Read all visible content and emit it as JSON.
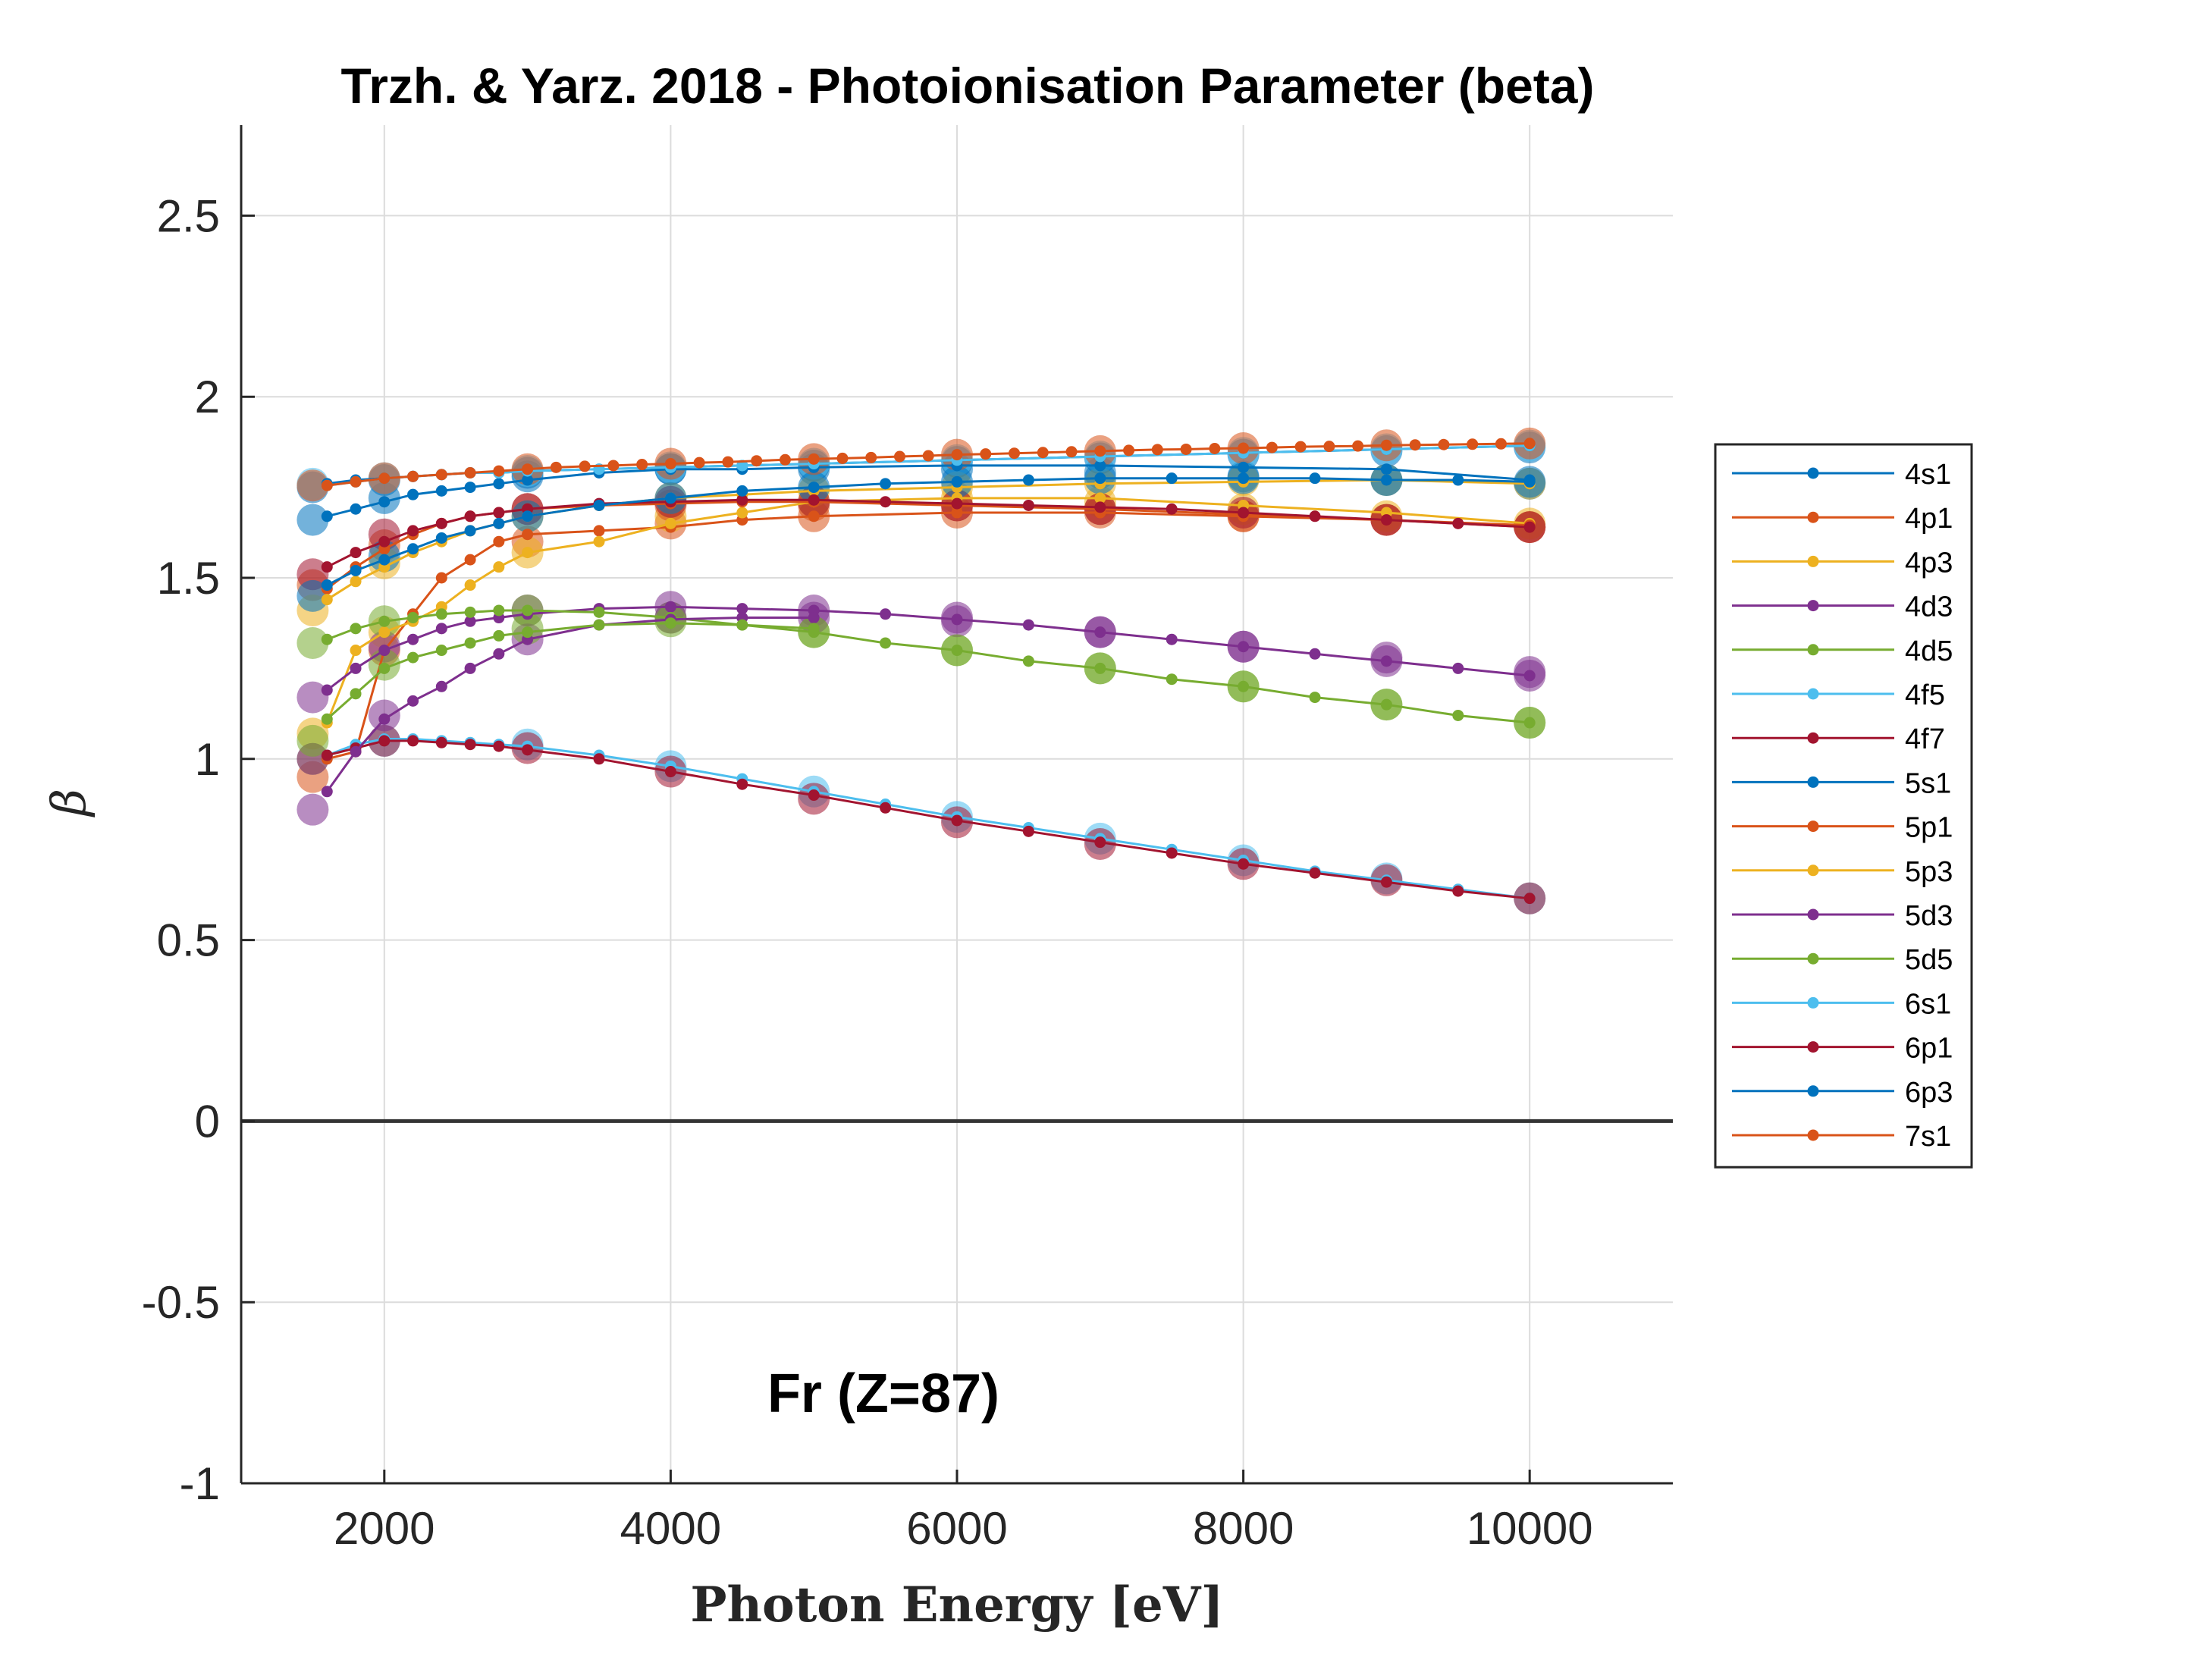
{
  "chart_data": {
    "type": "line",
    "title": "Trzh. & Yarz. 2018 - Photoionisation Parameter (beta)",
    "xlabel": "Photon Energy [eV]",
    "ylabel": "β",
    "annotation": "Fr (Z=87)",
    "xlim": [
      1000,
      11000
    ],
    "ylim": [
      -1,
      2.75
    ],
    "xticks": [
      2000,
      4000,
      6000,
      8000,
      10000
    ],
    "xtick_labels": [
      "2000",
      "4000",
      "6000",
      "8000",
      "10000"
    ],
    "yticks": [
      -1,
      -0.5,
      0,
      0.5,
      1,
      1.5,
      2,
      2.5
    ],
    "ytick_labels": [
      "-1",
      "-0.5",
      "0",
      "0.5",
      "1",
      "1.5",
      "2",
      "2.5"
    ],
    "grid": true,
    "zero_line": true,
    "legend_position": "right",
    "marker_x": [
      1500,
      2000,
      3000,
      4000,
      5000,
      6000,
      7000,
      8000,
      9000,
      10000
    ],
    "series": [
      {
        "name": "4s1",
        "color": "#0072BD",
        "x": [
          1600,
          1800,
          2000,
          2200,
          2400,
          2600,
          2800,
          3000,
          3500,
          4000,
          4500,
          5000,
          6000,
          7000,
          8000,
          9000,
          10000
        ],
        "y": [
          1.76,
          1.77,
          1.775,
          1.78,
          1.785,
          1.79,
          1.79,
          1.795,
          1.8,
          1.805,
          1.81,
          1.815,
          1.825,
          1.835,
          1.845,
          1.855,
          1.865
        ],
        "marker_y": [
          1.75,
          1.77,
          1.79,
          1.8,
          1.81,
          1.82,
          1.83,
          1.84,
          1.85,
          1.86
        ]
      },
      {
        "name": "4p1",
        "color": "#D95319",
        "x": [
          1600,
          1800,
          2000,
          2200,
          2400,
          2600,
          2800,
          3000,
          3500,
          4000,
          4500,
          5000,
          6000,
          7000,
          8000,
          9000,
          10000
        ],
        "y": [
          1.0,
          1.02,
          1.3,
          1.4,
          1.5,
          1.55,
          1.6,
          1.62,
          1.63,
          1.64,
          1.66,
          1.67,
          1.68,
          1.68,
          1.67,
          1.66,
          1.64
        ],
        "marker_y": [
          0.95,
          1.3,
          1.6,
          1.65,
          1.67,
          1.68,
          1.68,
          1.67,
          1.66,
          1.64
        ]
      },
      {
        "name": "4p3",
        "color": "#EDB120",
        "x": [
          1600,
          1800,
          2000,
          2200,
          2400,
          2600,
          2800,
          3000,
          3500,
          4000,
          4500,
          5000,
          6000,
          7000,
          8000,
          9000,
          10000
        ],
        "y": [
          1.1,
          1.3,
          1.35,
          1.38,
          1.42,
          1.48,
          1.53,
          1.57,
          1.6,
          1.65,
          1.68,
          1.71,
          1.72,
          1.72,
          1.7,
          1.68,
          1.65
        ],
        "marker_y": [
          1.07,
          1.35,
          1.57,
          1.67,
          1.71,
          1.72,
          1.71,
          1.69,
          1.67,
          1.65
        ]
      },
      {
        "name": "4d3",
        "color": "#7E2F8E",
        "x": [
          1600,
          1800,
          2000,
          2200,
          2400,
          2600,
          2800,
          3000,
          3500,
          4000,
          4500,
          5000,
          5500,
          6000,
          6500,
          7000,
          7500,
          8000,
          8500,
          9000,
          9500,
          10000
        ],
        "y": [
          1.19,
          1.25,
          1.3,
          1.33,
          1.36,
          1.38,
          1.39,
          1.4,
          1.415,
          1.42,
          1.415,
          1.41,
          1.4,
          1.385,
          1.37,
          1.35,
          1.33,
          1.31,
          1.29,
          1.27,
          1.25,
          1.23
        ],
        "marker_y": [
          1.17,
          1.31,
          1.41,
          1.42,
          1.41,
          1.39,
          1.35,
          1.31,
          1.27,
          1.23
        ]
      },
      {
        "name": "4d5",
        "color": "#77AC30",
        "x": [
          1600,
          1800,
          2000,
          2200,
          2400,
          2600,
          2800,
          3000,
          3500,
          4000,
          4500,
          5000,
          5500,
          6000,
          6500,
          7000,
          7500,
          8000,
          8500,
          9000,
          9500,
          10000
        ],
        "y": [
          1.33,
          1.36,
          1.38,
          1.39,
          1.4,
          1.405,
          1.41,
          1.41,
          1.405,
          1.39,
          1.37,
          1.35,
          1.32,
          1.3,
          1.27,
          1.25,
          1.22,
          1.2,
          1.17,
          1.15,
          1.12,
          1.1
        ],
        "marker_y": [
          1.32,
          1.38,
          1.41,
          1.39,
          1.35,
          1.3,
          1.25,
          1.2,
          1.15,
          1.1
        ]
      },
      {
        "name": "4f5",
        "color": "#4DBEEE",
        "x": [
          1600,
          1800,
          2000,
          2200,
          2400,
          2600,
          2800,
          3000,
          3500,
          4000,
          4500,
          5000,
          5500,
          6000,
          6500,
          7000,
          7500,
          8000,
          8500,
          9000,
          9500,
          10000
        ],
        "y": [
          1.01,
          1.04,
          1.055,
          1.055,
          1.05,
          1.045,
          1.04,
          1.035,
          1.01,
          0.98,
          0.945,
          0.91,
          0.875,
          0.84,
          0.81,
          0.78,
          0.75,
          0.72,
          0.69,
          0.665,
          0.64,
          0.615
        ],
        "marker_y": [
          1.0,
          1.05,
          1.04,
          0.98,
          0.91,
          0.84,
          0.78,
          0.72,
          0.67,
          0.615
        ]
      },
      {
        "name": "4f7",
        "color": "#A2142F",
        "x": [
          1600,
          1800,
          2000,
          2200,
          2400,
          2600,
          2800,
          3000,
          3500,
          4000,
          4500,
          5000,
          5500,
          6000,
          6500,
          7000,
          7500,
          8000,
          8500,
          9000,
          9500,
          10000
        ],
        "y": [
          1.01,
          1.03,
          1.05,
          1.05,
          1.045,
          1.04,
          1.035,
          1.025,
          1.0,
          0.965,
          0.93,
          0.9,
          0.865,
          0.83,
          0.8,
          0.77,
          0.74,
          0.71,
          0.685,
          0.66,
          0.635,
          0.615
        ],
        "marker_y": [
          1.0,
          1.05,
          1.03,
          0.965,
          0.89,
          0.825,
          0.765,
          0.71,
          0.665,
          0.615
        ]
      },
      {
        "name": "5s1",
        "color": "#0072BD",
        "x": [
          1600,
          1800,
          2000,
          2200,
          2400,
          2600,
          2800,
          3000,
          3500,
          4000,
          4500,
          5000,
          6000,
          7000,
          8000,
          9000,
          10000
        ],
        "y": [
          1.67,
          1.69,
          1.71,
          1.73,
          1.74,
          1.75,
          1.76,
          1.77,
          1.79,
          1.8,
          1.8,
          1.805,
          1.81,
          1.81,
          1.805,
          1.8,
          1.77
        ],
        "marker_y": [
          1.66,
          1.72,
          1.78,
          1.8,
          1.8,
          1.8,
          1.79,
          1.78,
          1.77,
          1.76
        ]
      },
      {
        "name": "5p1",
        "color": "#D95319",
        "x": [
          1600,
          1800,
          2000,
          2200,
          2400,
          2600,
          2800,
          3000,
          3500,
          4000,
          4500,
          5000,
          6000,
          7000,
          8000,
          9000,
          10000
        ],
        "y": [
          1.47,
          1.53,
          1.58,
          1.62,
          1.65,
          1.67,
          1.68,
          1.69,
          1.7,
          1.705,
          1.71,
          1.71,
          1.7,
          1.69,
          1.675,
          1.66,
          1.645
        ],
        "marker_y": [
          1.48,
          1.59,
          1.69,
          1.7,
          1.7,
          1.7,
          1.69,
          1.67,
          1.66,
          1.64
        ]
      },
      {
        "name": "5p3",
        "color": "#EDB120",
        "x": [
          1600,
          1800,
          2000,
          2200,
          2400,
          2600,
          2800,
          3000,
          3500,
          4000,
          4500,
          5000,
          6000,
          7000,
          8000,
          9000,
          10000
        ],
        "y": [
          1.44,
          1.49,
          1.53,
          1.57,
          1.6,
          1.63,
          1.65,
          1.67,
          1.7,
          1.72,
          1.73,
          1.74,
          1.75,
          1.76,
          1.765,
          1.77,
          1.76
        ],
        "marker_y": [
          1.41,
          1.54,
          1.67,
          1.72,
          1.74,
          1.75,
          1.76,
          1.77,
          1.77,
          1.76
        ]
      },
      {
        "name": "5d3",
        "color": "#7E2F8E",
        "x": [
          1600,
          1800,
          2000,
          2200,
          2400,
          2600,
          2800,
          3000,
          3500,
          4000,
          4500,
          5000
        ],
        "y": [
          0.91,
          1.02,
          1.11,
          1.16,
          1.2,
          1.25,
          1.29,
          1.33,
          1.37,
          1.385,
          1.39,
          1.39
        ],
        "marker_y": [
          0.86,
          1.12,
          1.33,
          1.39,
          1.39,
          1.38,
          1.35,
          1.31,
          1.28,
          1.24
        ]
      },
      {
        "name": "5d5",
        "color": "#77AC30",
        "x": [
          1600,
          1800,
          2000,
          2200,
          2400,
          2600,
          2800,
          3000,
          3500,
          4000,
          4500,
          5000
        ],
        "y": [
          1.11,
          1.18,
          1.25,
          1.28,
          1.3,
          1.32,
          1.34,
          1.35,
          1.37,
          1.375,
          1.37,
          1.36
        ],
        "marker_y": [
          1.05,
          1.26,
          1.36,
          1.38,
          1.35,
          1.3,
          1.25,
          1.2,
          1.15,
          1.1
        ]
      },
      {
        "name": "6s1",
        "color": "#4DBEEE",
        "x": [
          1600,
          1800,
          2000,
          2200,
          2400,
          2600,
          2800,
          3000,
          3500,
          4000,
          4500,
          5000,
          6000,
          7000,
          8000,
          9000,
          10000
        ],
        "y": [
          1.755,
          1.765,
          1.775,
          1.78,
          1.785,
          1.79,
          1.79,
          1.795,
          1.8,
          1.805,
          1.81,
          1.815,
          1.825,
          1.835,
          1.845,
          1.855,
          1.865
        ],
        "marker_y": [
          1.76,
          1.775,
          1.795,
          1.805,
          1.815,
          1.825,
          1.835,
          1.845,
          1.855,
          1.865
        ]
      },
      {
        "name": "6p1",
        "color": "#A2142F",
        "x": [
          1600,
          1800,
          2000,
          2200,
          2400,
          2600,
          2800,
          3000,
          3500,
          4000,
          4500,
          5000,
          5500,
          6000,
          6500,
          7000,
          7500,
          8000,
          8500,
          9000,
          9500,
          10000
        ],
        "y": [
          1.53,
          1.57,
          1.6,
          1.63,
          1.65,
          1.67,
          1.68,
          1.69,
          1.705,
          1.71,
          1.715,
          1.715,
          1.71,
          1.705,
          1.7,
          1.695,
          1.69,
          1.68,
          1.67,
          1.66,
          1.65,
          1.64
        ],
        "marker_y": [
          1.51,
          1.62,
          1.69,
          1.71,
          1.71,
          1.7,
          1.69,
          1.68,
          1.66,
          1.64
        ]
      },
      {
        "name": "6p3",
        "color": "#0072BD",
        "x": [
          1600,
          1800,
          2000,
          2200,
          2400,
          2600,
          2800,
          3000,
          3500,
          4000,
          4500,
          5000,
          5500,
          6000,
          6500,
          7000,
          7500,
          8000,
          8500,
          9000,
          9500,
          10000
        ],
        "y": [
          1.48,
          1.52,
          1.55,
          1.58,
          1.61,
          1.63,
          1.65,
          1.67,
          1.7,
          1.72,
          1.74,
          1.75,
          1.76,
          1.765,
          1.77,
          1.775,
          1.775,
          1.775,
          1.775,
          1.77,
          1.77,
          1.765
        ],
        "marker_y": [
          1.45,
          1.56,
          1.67,
          1.72,
          1.75,
          1.765,
          1.775,
          1.775,
          1.77,
          1.765
        ]
      },
      {
        "name": "7s1",
        "color": "#D95319",
        "x": [
          1600,
          1800,
          2000,
          2200,
          2400,
          2600,
          2800,
          3000,
          3200,
          3400,
          3600,
          3800,
          4000,
          4200,
          4400,
          4600,
          4800,
          5000,
          5200,
          5400,
          5600,
          5800,
          6000,
          6200,
          6400,
          6600,
          6800,
          7000,
          7200,
          7400,
          7600,
          7800,
          8000,
          8200,
          8400,
          8600,
          8800,
          9000,
          9200,
          9400,
          9600,
          9800,
          10000
        ],
        "y": [
          1.755,
          1.765,
          1.775,
          1.78,
          1.785,
          1.79,
          1.795,
          1.8,
          1.805,
          1.808,
          1.81,
          1.813,
          1.815,
          1.818,
          1.82,
          1.823,
          1.826,
          1.828,
          1.83,
          1.832,
          1.835,
          1.837,
          1.84,
          1.842,
          1.844,
          1.846,
          1.848,
          1.85,
          1.852,
          1.854,
          1.855,
          1.857,
          1.858,
          1.86,
          1.862,
          1.863,
          1.864,
          1.866,
          1.867,
          1.868,
          1.869,
          1.87,
          1.871
        ],
        "marker_y": [
          1.755,
          1.775,
          1.8,
          1.815,
          1.828,
          1.84,
          1.85,
          1.858,
          1.866,
          1.871
        ]
      }
    ]
  }
}
